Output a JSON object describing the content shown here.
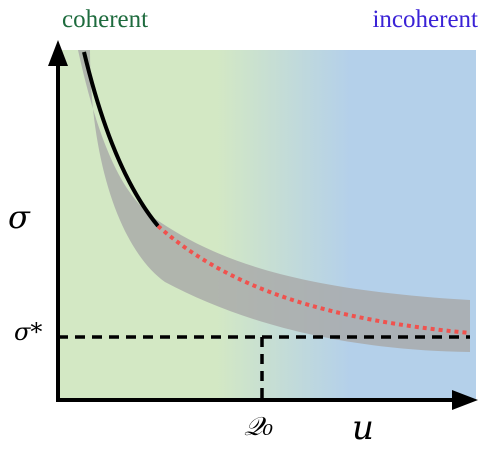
{
  "regions": {
    "coherent": "coherent",
    "incoherent": "incoherent"
  },
  "axes": {
    "y_label": "σ",
    "x_label": "u",
    "threshold_y_label": "σ*",
    "threshold_x_label": "𝒬₀"
  },
  "colors": {
    "coherent_region": "#d3e8c4",
    "incoherent_region": "#b4d0ea",
    "band": "#a8a8a8",
    "solid_curve": "#000000",
    "dotted_curve": "#f0524e",
    "coherent_text": "#1e6b3e",
    "incoherent_text": "#3a22d6"
  }
}
